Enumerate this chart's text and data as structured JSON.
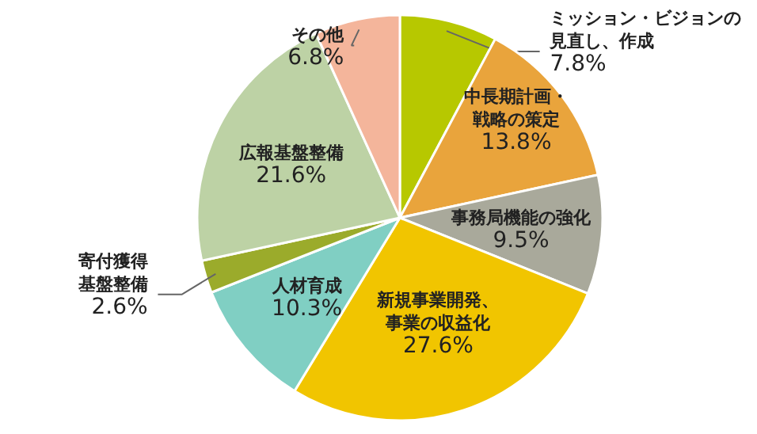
{
  "chart_data": {
    "type": "pie",
    "categories": [
      "ミッション・ビジョンの見直し、作成",
      "中長期計画・戦略の策定",
      "事務局機能の強化",
      "新規事業開発、事業の収益化",
      "人材育成",
      "寄付獲得基盤整備",
      "広報基盤整備",
      "その他"
    ],
    "values": [
      7.8,
      13.8,
      9.5,
      27.6,
      10.3,
      2.6,
      21.6,
      6.8
    ],
    "value_labels": [
      "7.8%",
      "13.8%",
      "9.5%",
      "27.6%",
      "10.3%",
      "2.6%",
      "21.6%",
      "6.8%"
    ],
    "colors": [
      "#b7c800",
      "#e9a43c",
      "#a9a99b",
      "#f1c500",
      "#80cfc3",
      "#9bab2b",
      "#bdd2a5",
      "#f4b59b"
    ]
  }
}
